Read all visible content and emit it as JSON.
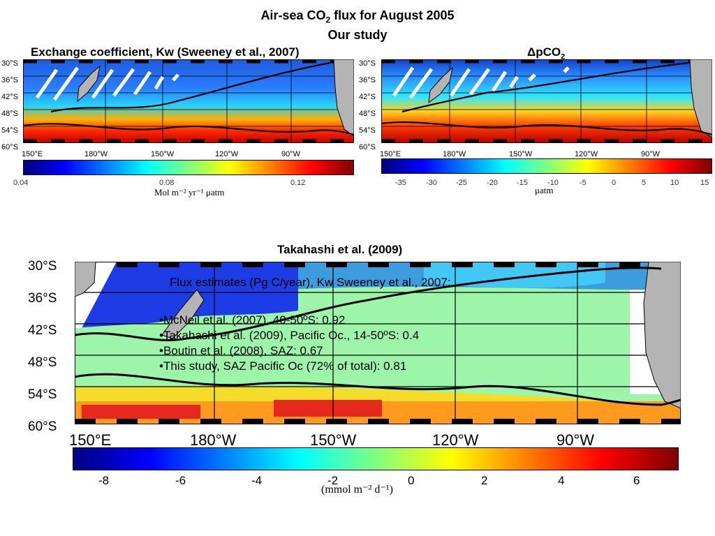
{
  "slide": {
    "title_main": "Air-sea CO",
    "title_sub": "2",
    "title_rest": " flux for August 2005",
    "subtitle": "Our study"
  },
  "panels": [
    {
      "id": "kw",
      "title": "Exchange coefficient, Kw (Sweeney et al., 2007)",
      "lat_labels": [
        "30°S",
        "36°S",
        "42°S",
        "48°S",
        "54°S",
        "60°S"
      ],
      "lon_labels": [
        "150°E",
        "180°W",
        "150°W",
        "120°W",
        "90°W"
      ],
      "colorbar": {
        "ticks": [
          "0.04",
          "0.08",
          "0.12"
        ],
        "unit": "Mol m⁻² yr⁻¹ μatm"
      }
    },
    {
      "id": "dpco2",
      "title": "ΔpCO",
      "title_sub": "2",
      "lat_labels": [
        "30°S",
        "36°S",
        "42°S",
        "48°S",
        "54°S",
        "60°S"
      ],
      "lon_labels": [
        "150°E",
        "180°W",
        "150°W",
        "120°W",
        "90°W"
      ],
      "colorbar": {
        "ticks": [
          "-35",
          "-30",
          "-25",
          "-20",
          "-15",
          "-10",
          "-5",
          "0",
          "5",
          "10",
          "15"
        ],
        "unit": "μatm"
      }
    },
    {
      "id": "takahashi",
      "title": "Takahashi et al. (2009)",
      "lat_labels": [
        "30°S",
        "36°S",
        "42°S",
        "48°S",
        "54°S",
        "60°S"
      ],
      "lon_labels": [
        "150°E",
        "180°W",
        "150°W",
        "120°W",
        "90°W"
      ],
      "colorbar": {
        "ticks": [
          "-8",
          "-6",
          "-4",
          "-2",
          "0",
          "2",
          "4",
          "6"
        ],
        "unit": "(mmol m⁻² d⁻¹)"
      }
    }
  ],
  "flux_estimates": {
    "heading": "Flux estimates (Pg C/year), Kw Sweeney et al., 2007:",
    "items": [
      "McNeil et al. (2007), 40-50ºS: 0.92",
      "Takahashi et al. (2009), Pacific Oc., 14-50ºS: 0.4",
      "Boutin et al. (2008), SAZ: 0.67",
      "This study, SAZ Pacific Oc (72% of total): 0.81"
    ]
  },
  "colors": {
    "land": "#b4b4b4",
    "colormap": [
      "#00007f",
      "#0000ff",
      "#007fff",
      "#00ffff",
      "#7fff7f",
      "#ffff00",
      "#ff7f00",
      "#ff0000",
      "#7f0000"
    ]
  }
}
